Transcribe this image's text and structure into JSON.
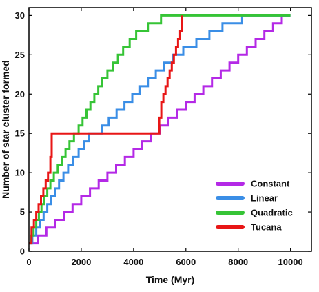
{
  "chart_data": {
    "type": "line",
    "title": "",
    "xlabel": "Time (Myr)",
    "ylabel": "Number of star cluster formed",
    "xlim": [
      0,
      10800
    ],
    "ylim": [
      0,
      31
    ],
    "xticks": [
      0,
      2000,
      4000,
      6000,
      8000,
      10000
    ],
    "yticks": [
      0,
      5,
      10,
      15,
      20,
      25,
      30
    ],
    "xtick_labels": [
      "0",
      "2000",
      "4000",
      "6000",
      "8000",
      "10000"
    ],
    "ytick_labels": [
      "0",
      "5",
      "10",
      "15",
      "20",
      "25",
      "30"
    ],
    "grid": false,
    "legend_position": "bottom-right",
    "step_style": "post",
    "series": [
      {
        "name": "Constant",
        "color": "#b429e6",
        "x": [
          0,
          333,
          667,
          1000,
          1333,
          1667,
          2000,
          2333,
          2667,
          3000,
          3333,
          3667,
          4000,
          4333,
          4667,
          5000,
          5333,
          5667,
          6000,
          6333,
          6667,
          7000,
          7333,
          7667,
          8000,
          8333,
          8667,
          9000,
          9333,
          9667,
          10000
        ],
        "y": [
          1,
          2,
          3,
          4,
          5,
          6,
          7,
          8,
          9,
          10,
          11,
          12,
          13,
          14,
          15,
          16,
          17,
          18,
          19,
          20,
          21,
          22,
          23,
          24,
          25,
          26,
          27,
          28,
          29,
          30,
          30
        ]
      },
      {
        "name": "Linear",
        "color": "#3a8ee6",
        "x": [
          0,
          130,
          280,
          420,
          560,
          700,
          850,
          1000,
          1150,
          1320,
          1500,
          1700,
          1900,
          2100,
          2300,
          2550,
          2800,
          3050,
          3350,
          3650,
          3950,
          4250,
          4550,
          4850,
          5150,
          5500,
          5900,
          6400,
          6900,
          7400,
          8150,
          10000
        ],
        "y": [
          1,
          2,
          3,
          4,
          5,
          6,
          7,
          8,
          9,
          10,
          11,
          12,
          13,
          14,
          15,
          15,
          16,
          17,
          18,
          19,
          20,
          21,
          22,
          23,
          24,
          25,
          26,
          27,
          28,
          29,
          30,
          30
        ]
      },
      {
        "name": "Quadratic",
        "color": "#36c436",
        "x": [
          0,
          80,
          180,
          280,
          380,
          480,
          580,
          700,
          820,
          950,
          1100,
          1250,
          1400,
          1550,
          1720,
          1900,
          2050,
          2200,
          2350,
          2500,
          2650,
          2800,
          3000,
          3200,
          3400,
          3600,
          3850,
          4100,
          4550,
          5050,
          5850,
          10000
        ],
        "y": [
          1,
          2,
          3,
          4,
          5,
          6,
          7,
          8,
          9,
          10,
          11,
          12,
          13,
          14,
          15,
          16,
          17,
          18,
          19,
          20,
          21,
          22,
          23,
          24,
          25,
          26,
          27,
          28,
          29,
          30,
          30,
          30
        ]
      },
      {
        "name": "Tucana",
        "color": "#e81616",
        "x": [
          0,
          100,
          190,
          280,
          370,
          460,
          550,
          640,
          730,
          820,
          870,
          4900,
          4980,
          5060,
          5140,
          5220,
          5300,
          5380,
          5460,
          5540,
          5620,
          5700,
          5780,
          5860
        ],
        "y": [
          1,
          3,
          4,
          5,
          6,
          7,
          8,
          9,
          10,
          12,
          15,
          15,
          17,
          19,
          20,
          21,
          22,
          23,
          24,
          25,
          26,
          27,
          28,
          30
        ]
      }
    ]
  }
}
